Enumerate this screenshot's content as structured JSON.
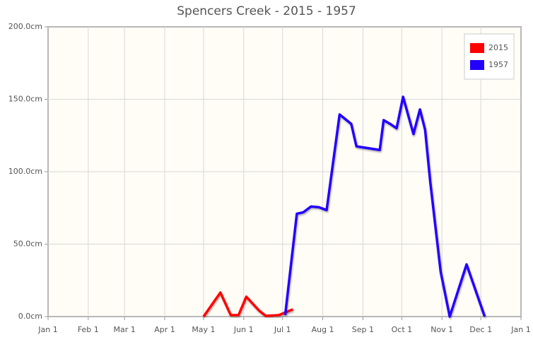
{
  "chart_data": {
    "type": "line",
    "title": "Spencers Creek - 2015 - 1957",
    "xlim": [
      0,
      365
    ],
    "xticks": [
      {
        "value": 0,
        "label": "Jan 1"
      },
      {
        "value": 31,
        "label": "Feb 1"
      },
      {
        "value": 59,
        "label": "Mar 1"
      },
      {
        "value": 90,
        "label": "Apr 1"
      },
      {
        "value": 120,
        "label": "May 1"
      },
      {
        "value": 151,
        "label": "Jun 1"
      },
      {
        "value": 181,
        "label": "Jul 1"
      },
      {
        "value": 212,
        "label": "Aug 1"
      },
      {
        "value": 243,
        "label": "Sep 1"
      },
      {
        "value": 273,
        "label": "Oct 1"
      },
      {
        "value": 304,
        "label": "Nov 1"
      },
      {
        "value": 334,
        "label": "Dec 1"
      },
      {
        "value": 365,
        "label": "Jan 1"
      }
    ],
    "ylim": [
      0,
      200
    ],
    "yticks": [
      {
        "value": 0,
        "label": "0.0cm"
      },
      {
        "value": 50,
        "label": "50.0cm"
      },
      {
        "value": 100,
        "label": "100.0cm"
      },
      {
        "value": 150,
        "label": "150.0cm"
      },
      {
        "value": 200,
        "label": "200.0cm"
      }
    ],
    "grid": true,
    "legend": "top-right",
    "series": [
      {
        "name": "2015",
        "color": "#ff0000",
        "x": [
          120,
          133,
          141,
          147,
          153,
          163,
          168,
          178,
          189
        ],
        "values": [
          0,
          16.6,
          1,
          1,
          13.7,
          4,
          0.5,
          1,
          5
        ]
      },
      {
        "name": "1957",
        "color": "#2200ff",
        "x": [
          183,
          192,
          197,
          203,
          209,
          215,
          225,
          234,
          238,
          256,
          259,
          264,
          269,
          274,
          282,
          287,
          291,
          295,
          303,
          310,
          323,
          337
        ],
        "values": [
          1,
          71,
          72,
          76,
          75.5,
          73.5,
          139.5,
          133,
          117.5,
          115,
          135.6,
          133,
          130,
          151.7,
          126,
          143,
          129,
          92.7,
          31,
          0,
          36,
          0
        ]
      }
    ]
  }
}
